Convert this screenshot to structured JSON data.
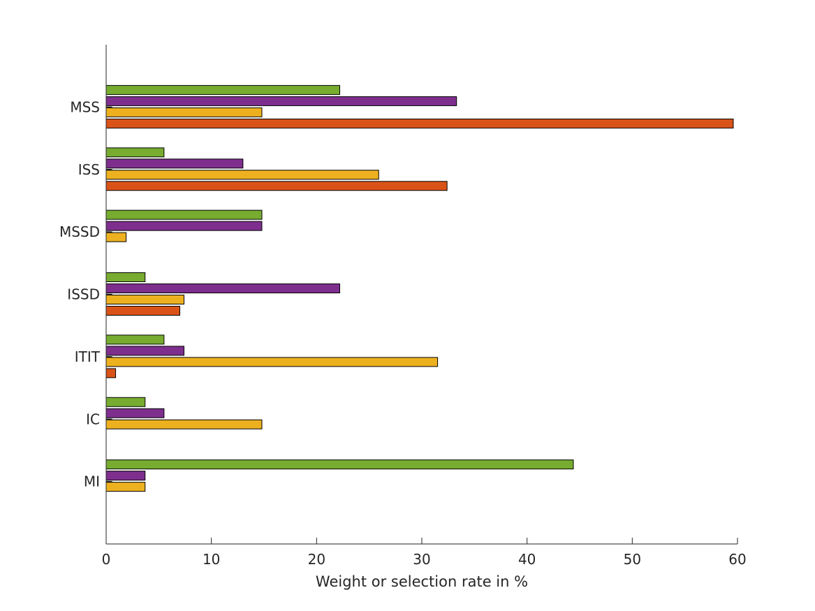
{
  "chart_data": {
    "type": "bar",
    "orientation": "horizontal",
    "title": "",
    "xlabel": "Weight or selection rate in %",
    "ylabel": "",
    "xlim": [
      0,
      60
    ],
    "x_ticks": [
      0,
      10,
      20,
      30,
      40,
      50,
      60
    ],
    "categories": [
      "MSS",
      "ISS",
      "MSSD",
      "ISSD",
      "ITIT",
      "IC",
      "MI"
    ],
    "grid": false,
    "legend": "none",
    "series": [
      {
        "color": "#77AC30",
        "values": [
          22.2,
          5.5,
          14.8,
          3.7,
          5.5,
          3.7,
          44.4
        ]
      },
      {
        "color": "#7E2F8E",
        "values": [
          33.3,
          13.0,
          14.8,
          22.2,
          7.4,
          5.5,
          3.7
        ]
      },
      {
        "color": "#000000",
        "values": [
          0.5,
          0.5,
          0.5,
          0.5,
          0.5,
          0.5,
          0.5
        ]
      },
      {
        "color": "#EDB120",
        "values": [
          14.8,
          25.9,
          1.9,
          7.4,
          31.5,
          14.8,
          3.7
        ]
      },
      {
        "color": "#D95319",
        "values": [
          59.6,
          32.4,
          0,
          7.0,
          0.9,
          0,
          0
        ]
      }
    ]
  }
}
